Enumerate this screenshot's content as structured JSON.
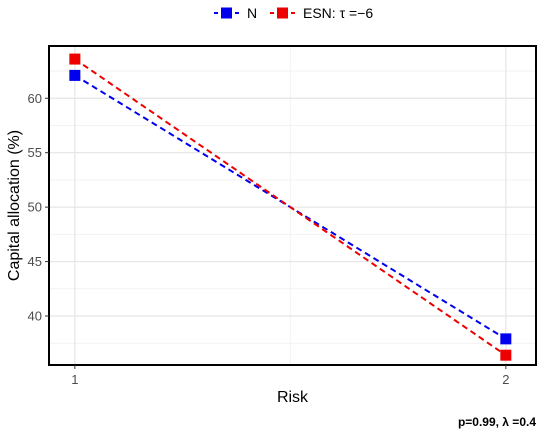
{
  "chart_data": {
    "type": "line",
    "x": [
      1,
      2
    ],
    "x_ticks": [
      "1",
      "2"
    ],
    "xlabel": "Risk",
    "ylabel": "Capital allocation (%)",
    "ylim": [
      35.5,
      64.8
    ],
    "xlim": [
      0.94,
      2.07
    ],
    "y_ticks": [
      40,
      45,
      50,
      55,
      60
    ],
    "grid": true,
    "legend_position": "top",
    "series": [
      {
        "name": "N",
        "values": [
          62.1,
          37.9
        ],
        "color": "#0000ee",
        "line_style": "dashed",
        "marker": "square"
      },
      {
        "name": "ESN: τ =−6",
        "values": [
          63.6,
          36.4
        ],
        "color": "#ee0000",
        "line_style": "dashed",
        "marker": "square"
      }
    ],
    "annotation": "p=0.99, λ =0.4"
  }
}
